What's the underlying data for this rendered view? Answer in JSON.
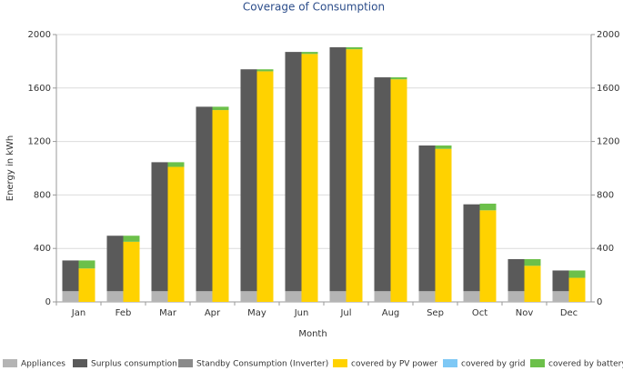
{
  "chart_data": {
    "type": "stacked-bar",
    "title": "Coverage of Consumption",
    "x_label": "Month",
    "y_label": "Energy in kWh",
    "categories": [
      "Jan",
      "Feb",
      "Mar",
      "Apr",
      "May",
      "Jun",
      "Jul",
      "Aug",
      "Sep",
      "Oct",
      "Nov",
      "Dec"
    ],
    "series": [
      {
        "name": "Appliances",
        "color": "#b4b4b4",
        "stack": 1,
        "values": [
          80,
          80,
          80,
          80,
          80,
          80,
          80,
          80,
          80,
          80,
          80,
          80
        ]
      },
      {
        "name": "Surplus consumption",
        "color": "#5a5a5a",
        "stack": 1,
        "values": [
          230,
          415,
          965,
          1380,
          1660,
          1790,
          1825,
          1600,
          1090,
          650,
          240,
          155
        ]
      },
      {
        "name": "Standby Consumption (Inverter)",
        "color": "#8a8a8a",
        "stack": 1,
        "values": [
          0,
          0,
          0,
          0,
          0,
          0,
          0,
          0,
          0,
          0,
          0,
          0
        ]
      },
      {
        "name": "covered by PV power",
        "color": "#ffd200",
        "stack": 2,
        "values": [
          250,
          450,
          1010,
          1435,
          1725,
          1855,
          1890,
          1665,
          1145,
          685,
          270,
          180
        ]
      },
      {
        "name": "covered by grid",
        "color": "#7ec8f5",
        "stack": 2,
        "values": [
          0,
          0,
          0,
          0,
          0,
          0,
          0,
          0,
          0,
          0,
          0,
          0
        ]
      },
      {
        "name": "covered by battery",
        "color": "#6cc04a",
        "stack": 2,
        "values": [
          60,
          45,
          35,
          25,
          15,
          15,
          15,
          15,
          25,
          50,
          50,
          55
        ]
      }
    ],
    "ylim": [
      0,
      2000
    ],
    "yticks": [
      0,
      400,
      800,
      1200,
      1600,
      2000
    ],
    "y2lim": [
      0,
      2000
    ],
    "y2ticks": [
      0,
      400,
      800,
      1200,
      1600,
      2000
    ],
    "grid": true,
    "legend": "bottom"
  }
}
